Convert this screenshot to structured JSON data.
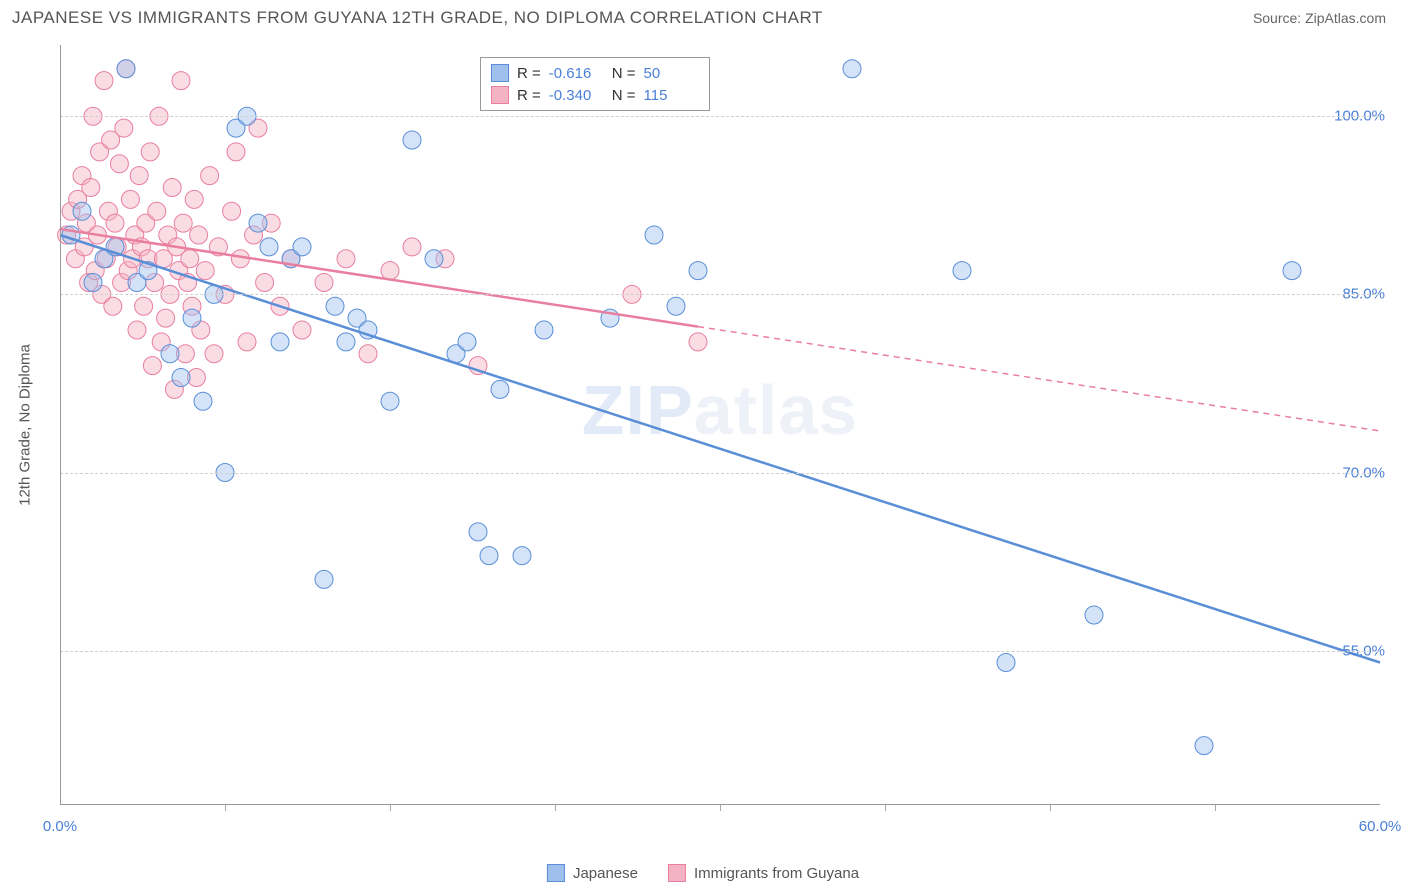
{
  "title": "JAPANESE VS IMMIGRANTS FROM GUYANA 12TH GRADE, NO DIPLOMA CORRELATION CHART",
  "source": "Source: ZipAtlas.com",
  "y_label": "12th Grade, No Diploma",
  "watermark": "ZIPatlas",
  "chart": {
    "type": "scatter-with-trendlines",
    "background_color": "#ffffff",
    "grid_color": "#d0d0d0",
    "axis_color": "#999999",
    "tick_color": "#4a7fd8",
    "xlim": [
      0,
      60
    ],
    "ylim": [
      42,
      106
    ],
    "x_ticks": [
      0,
      60
    ],
    "x_tick_labels": [
      "0.0%",
      "60.0%"
    ],
    "x_minor_ticks": [
      7.5,
      15,
      22.5,
      30,
      37.5,
      45,
      52.5
    ],
    "y_ticks": [
      55,
      70,
      85,
      100
    ],
    "y_tick_labels": [
      "55.0%",
      "70.0%",
      "85.0%",
      "100.0%"
    ],
    "marker_radius": 9,
    "marker_opacity": 0.45,
    "series": [
      {
        "name": "Japanese",
        "color_fill": "#9fc0ed",
        "color_stroke": "#5a8fd8",
        "R": "-0.616",
        "N": "50",
        "trend": {
          "x1": 0,
          "y1": 90,
          "x2": 60,
          "y2": 54,
          "solid_until_x": 60
        },
        "points": [
          [
            0.5,
            90
          ],
          [
            1,
            92
          ],
          [
            1.5,
            86
          ],
          [
            2,
            88
          ],
          [
            2.5,
            89
          ],
          [
            3,
            104
          ],
          [
            3.5,
            86
          ],
          [
            4,
            87
          ],
          [
            5,
            80
          ],
          [
            5.5,
            78
          ],
          [
            6,
            83
          ],
          [
            6.5,
            76
          ],
          [
            7,
            85
          ],
          [
            7.5,
            70
          ],
          [
            8,
            99
          ],
          [
            8.5,
            100
          ],
          [
            9,
            91
          ],
          [
            9.5,
            89
          ],
          [
            10,
            81
          ],
          [
            10.5,
            88
          ],
          [
            11,
            89
          ],
          [
            12,
            61
          ],
          [
            12.5,
            84
          ],
          [
            13,
            81
          ],
          [
            13.5,
            83
          ],
          [
            14,
            82
          ],
          [
            15,
            76
          ],
          [
            16,
            98
          ],
          [
            17,
            88
          ],
          [
            18,
            80
          ],
          [
            18.5,
            81
          ],
          [
            19,
            65
          ],
          [
            19.5,
            63
          ],
          [
            20,
            77
          ],
          [
            21,
            63
          ],
          [
            22,
            82
          ],
          [
            25,
            83
          ],
          [
            27,
            90
          ],
          [
            28,
            84
          ],
          [
            29,
            87
          ],
          [
            36,
            104
          ],
          [
            41,
            87
          ],
          [
            43,
            54
          ],
          [
            47,
            58
          ],
          [
            52,
            47
          ],
          [
            56,
            87
          ]
        ]
      },
      {
        "name": "Immigrants from Guyana",
        "color_fill": "#f3b3c4",
        "color_stroke": "#e97fa0",
        "R": "-0.340",
        "N": "115",
        "trend": {
          "x1": 0,
          "y1": 90.5,
          "x2": 60,
          "y2": 73.5,
          "solid_until_x": 29
        },
        "points": [
          [
            0.3,
            90
          ],
          [
            0.5,
            92
          ],
          [
            0.7,
            88
          ],
          [
            0.8,
            93
          ],
          [
            1,
            95
          ],
          [
            1.1,
            89
          ],
          [
            1.2,
            91
          ],
          [
            1.3,
            86
          ],
          [
            1.4,
            94
          ],
          [
            1.5,
            100
          ],
          [
            1.6,
            87
          ],
          [
            1.7,
            90
          ],
          [
            1.8,
            97
          ],
          [
            1.9,
            85
          ],
          [
            2,
            103
          ],
          [
            2.1,
            88
          ],
          [
            2.2,
            92
          ],
          [
            2.3,
            98
          ],
          [
            2.4,
            84
          ],
          [
            2.5,
            91
          ],
          [
            2.6,
            89
          ],
          [
            2.7,
            96
          ],
          [
            2.8,
            86
          ],
          [
            2.9,
            99
          ],
          [
            3,
            104
          ],
          [
            3.1,
            87
          ],
          [
            3.2,
            93
          ],
          [
            3.3,
            88
          ],
          [
            3.4,
            90
          ],
          [
            3.5,
            82
          ],
          [
            3.6,
            95
          ],
          [
            3.7,
            89
          ],
          [
            3.8,
            84
          ],
          [
            3.9,
            91
          ],
          [
            4,
            88
          ],
          [
            4.1,
            97
          ],
          [
            4.2,
            79
          ],
          [
            4.3,
            86
          ],
          [
            4.4,
            92
          ],
          [
            4.5,
            100
          ],
          [
            4.6,
            81
          ],
          [
            4.7,
            88
          ],
          [
            4.8,
            83
          ],
          [
            4.9,
            90
          ],
          [
            5,
            85
          ],
          [
            5.1,
            94
          ],
          [
            5.2,
            77
          ],
          [
            5.3,
            89
          ],
          [
            5.4,
            87
          ],
          [
            5.5,
            103
          ],
          [
            5.6,
            91
          ],
          [
            5.7,
            80
          ],
          [
            5.8,
            86
          ],
          [
            5.9,
            88
          ],
          [
            6,
            84
          ],
          [
            6.1,
            93
          ],
          [
            6.2,
            78
          ],
          [
            6.3,
            90
          ],
          [
            6.4,
            82
          ],
          [
            6.6,
            87
          ],
          [
            6.8,
            95
          ],
          [
            7,
            80
          ],
          [
            7.2,
            89
          ],
          [
            7.5,
            85
          ],
          [
            7.8,
            92
          ],
          [
            8,
            97
          ],
          [
            8.2,
            88
          ],
          [
            8.5,
            81
          ],
          [
            8.8,
            90
          ],
          [
            9,
            99
          ],
          [
            9.3,
            86
          ],
          [
            9.6,
            91
          ],
          [
            10,
            84
          ],
          [
            10.5,
            88
          ],
          [
            11,
            82
          ],
          [
            12,
            86
          ],
          [
            13,
            88
          ],
          [
            14,
            80
          ],
          [
            15,
            87
          ],
          [
            16,
            89
          ],
          [
            17.5,
            88
          ],
          [
            19,
            79
          ],
          [
            26,
            85
          ],
          [
            29,
            81
          ]
        ]
      }
    ]
  },
  "legend_top": {
    "R_label": "R =",
    "N_label": "N ="
  },
  "legend_bottom": [
    {
      "label": "Japanese",
      "fill": "#9fc0ed",
      "stroke": "#5a8fd8"
    },
    {
      "label": "Immigrants from Guyana",
      "fill": "#f3b3c4",
      "stroke": "#e97fa0"
    }
  ]
}
